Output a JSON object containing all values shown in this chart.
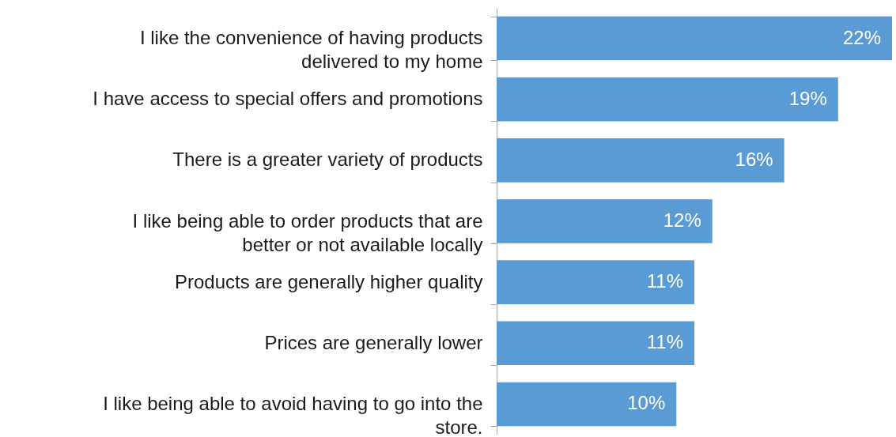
{
  "chart_data": {
    "type": "bar",
    "orientation": "horizontal",
    "tick_labels": "y",
    "categories": [
      "I like the convenience of having products delivered to my home",
      "I have access to special offers and promotions",
      "There is a greater variety of products",
      "I like being able to order products that are better or not available locally",
      "Products are generally higher quality",
      "Prices are generally lower",
      "I like being able to avoid having to go into the store."
    ],
    "values": [
      22,
      19,
      16,
      12,
      11,
      11,
      10
    ],
    "value_labels": [
      "22%",
      "19%",
      "16%",
      "12%",
      "11%",
      "11%",
      "10%"
    ],
    "color": "#5b9bd5"
  }
}
